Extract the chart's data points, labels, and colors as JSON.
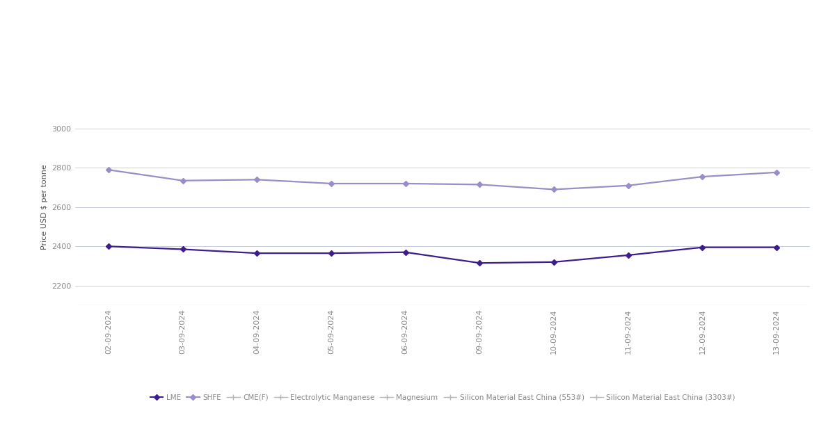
{
  "dates": [
    "02-09-2024",
    "03-09-2024",
    "04-09-2024",
    "05-09-2024",
    "06-09-2024",
    "09-09-2024",
    "10-09-2024",
    "11-09-2024",
    "12-09-2024",
    "13-09-2024"
  ],
  "lme": [
    2400,
    2385,
    2365,
    2365,
    2370,
    2315,
    2320,
    2355,
    2395,
    2395
  ],
  "shfe": [
    2790,
    2735,
    2740,
    2720,
    2720,
    2715,
    2690,
    2710,
    2755,
    2777
  ],
  "lme_color": "#3d1d8c",
  "shfe_color": "#9b8dc8",
  "grid_color": "#c8d0e0",
  "ylabel": "Price USD $ per tonne",
  "ylim_min": 2100,
  "ylim_max": 3100,
  "yticks": [
    2200,
    2400,
    2600,
    2800,
    3000
  ],
  "background_color": "#ffffff",
  "tick_label_fontsize": 8,
  "axis_label_fontsize": 8,
  "legend_fontsize": 7.5
}
